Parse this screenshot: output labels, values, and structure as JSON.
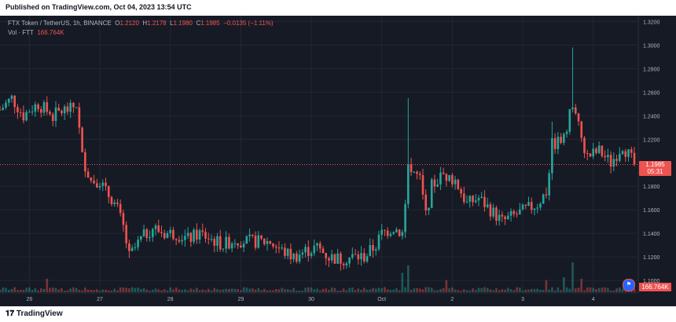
{
  "header": {
    "published": "Published on TradingView.com, Oct 04, 2023 13:54 UTC"
  },
  "footer": {
    "logo_text": "TradingView"
  },
  "legend": {
    "symbol": "FTX Token / TetherUS, 1h, BINANCE",
    "o_label": "O",
    "o": "1.2120",
    "h_label": "H",
    "h": "1.2178",
    "l_label": "L",
    "l": "1.1980",
    "c_label": "C",
    "c": "1.1985",
    "change": "−0.0135 (−1.11%)",
    "vol_label": "Vol · FTT",
    "vol": "166.764K"
  },
  "price_tag": {
    "price": "1.1985",
    "countdown": "05:31"
  },
  "volume_tag": "166.764K",
  "colors": {
    "up": "#26a69a",
    "down": "#ef5350",
    "background": "#161a25",
    "grid": "#232734",
    "axis_text": "#b2b5be"
  },
  "chart_data": {
    "type": "candlestick",
    "ylim": [
      1.09,
      1.325
    ],
    "y_ticks": [
      {
        "value": 1.32,
        "label": "1.3200"
      },
      {
        "value": 1.3,
        "label": "1.3000"
      },
      {
        "value": 1.28,
        "label": "1.2800"
      },
      {
        "value": 1.26,
        "label": "1.2600"
      },
      {
        "value": 1.24,
        "label": "1.2400"
      },
      {
        "value": 1.22,
        "label": "1.2200"
      },
      {
        "value": 1.18,
        "label": "1.1800"
      },
      {
        "value": 1.16,
        "label": "1.1600"
      },
      {
        "value": 1.14,
        "label": "1.1400"
      },
      {
        "value": 1.12,
        "label": "1.1200"
      },
      {
        "value": 1.1,
        "label": "1.1000"
      }
    ],
    "x_ticks": [
      {
        "hour": 0,
        "label": "26"
      },
      {
        "hour": 24,
        "label": "27"
      },
      {
        "hour": 48,
        "label": "28"
      },
      {
        "hour": 72,
        "label": "29"
      },
      {
        "hour": 96,
        "label": "30"
      },
      {
        "hour": 120,
        "label": "Oct"
      },
      {
        "hour": 144,
        "label": "2"
      },
      {
        "hour": 168,
        "label": "3"
      },
      {
        "hour": 192,
        "label": "4"
      }
    ],
    "x_range_hours": [
      -10,
      206
    ],
    "last_price": 1.1985,
    "keypoints": [
      [
        -10,
        1.245
      ],
      [
        -6,
        1.255
      ],
      [
        -2,
        1.24
      ],
      [
        0,
        1.245
      ],
      [
        3,
        1.25
      ],
      [
        8,
        1.24
      ],
      [
        12,
        1.245
      ],
      [
        14,
        1.245
      ],
      [
        16,
        1.25
      ],
      [
        18,
        1.205
      ],
      [
        21,
        1.185
      ],
      [
        24,
        1.185
      ],
      [
        26,
        1.175
      ],
      [
        28,
        1.17
      ],
      [
        30,
        1.16
      ],
      [
        32,
        1.145
      ],
      [
        34,
        1.12
      ],
      [
        38,
        1.135
      ],
      [
        42,
        1.145
      ],
      [
        46,
        1.14
      ],
      [
        50,
        1.14
      ],
      [
        54,
        1.135
      ],
      [
        58,
        1.14
      ],
      [
        62,
        1.135
      ],
      [
        66,
        1.13
      ],
      [
        70,
        1.135
      ],
      [
        74,
        1.133
      ],
      [
        78,
        1.133
      ],
      [
        82,
        1.133
      ],
      [
        86,
        1.125
      ],
      [
        90,
        1.12
      ],
      [
        94,
        1.125
      ],
      [
        98,
        1.128
      ],
      [
        102,
        1.12
      ],
      [
        106,
        1.118
      ],
      [
        110,
        1.12
      ],
      [
        114,
        1.12
      ],
      [
        118,
        1.13
      ],
      [
        120,
        1.14
      ],
      [
        124,
        1.145
      ],
      [
        127,
        1.14
      ],
      [
        129,
        1.2
      ],
      [
        133,
        1.185
      ],
      [
        135,
        1.155
      ],
      [
        137,
        1.18
      ],
      [
        141,
        1.19
      ],
      [
        145,
        1.185
      ],
      [
        149,
        1.165
      ],
      [
        153,
        1.17
      ],
      [
        157,
        1.16
      ],
      [
        161,
        1.15
      ],
      [
        165,
        1.155
      ],
      [
        169,
        1.16
      ],
      [
        173,
        1.165
      ],
      [
        176,
        1.175
      ],
      [
        178,
        1.215
      ],
      [
        182,
        1.22
      ],
      [
        185,
        1.25
      ],
      [
        188,
        1.22
      ],
      [
        190,
        1.205
      ],
      [
        194,
        1.21
      ],
      [
        198,
        1.2
      ],
      [
        202,
        1.215
      ],
      [
        206,
        1.1985
      ]
    ],
    "spikes": [
      {
        "hour": 129,
        "high": 1.255
      },
      {
        "hour": 185,
        "high": 1.298
      },
      {
        "hour": 178,
        "high": 1.235
      }
    ],
    "volume_spikes": [
      {
        "hour": 6,
        "v": 0.45
      },
      {
        "hour": 127,
        "v": 0.65
      },
      {
        "hour": 129,
        "v": 0.9
      },
      {
        "hour": 142,
        "v": 0.4
      },
      {
        "hour": 176,
        "v": 0.4
      },
      {
        "hour": 182,
        "v": 0.5
      },
      {
        "hour": 185,
        "v": 1.0
      },
      {
        "hour": 188,
        "v": 0.45
      }
    ]
  }
}
